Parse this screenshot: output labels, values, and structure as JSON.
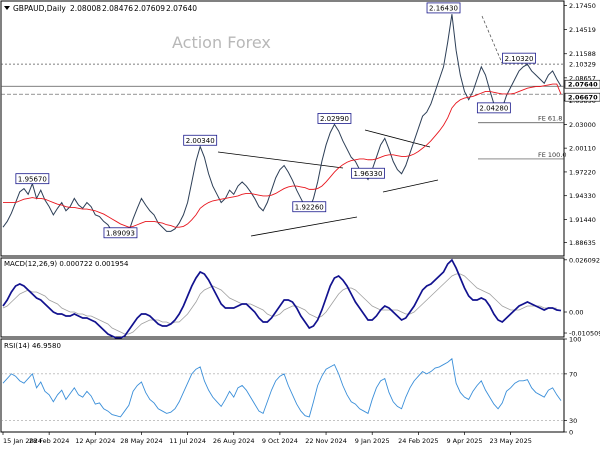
{
  "header": {
    "title": "GBPAUD,Daily",
    "ohlc": [
      "2.08008",
      "2.08476",
      "2.07609",
      "2.07640"
    ]
  },
  "watermark": "Action Forex",
  "colors": {
    "price": "#2d3f57",
    "ma": "#e8171f",
    "macd": "#12128f",
    "signal": "#a0a0a0",
    "rsi": "#3b8fd9",
    "grid": "#555555",
    "label_box": "#1a1a8c"
  },
  "chart_data": [
    {
      "type": "line",
      "panel": "price",
      "series": [
        {
          "values": [
            1.905,
            1.912,
            1.922,
            1.935,
            1.948,
            1.952,
            1.945,
            1.958,
            1.94,
            1.95,
            1.938,
            1.93,
            1.92,
            1.928,
            1.935,
            1.925,
            1.93,
            1.94,
            1.932,
            1.928,
            1.935,
            1.93,
            1.92,
            1.918,
            1.912,
            1.908,
            1.9,
            1.896,
            1.893,
            1.895,
            1.9,
            1.915,
            1.928,
            1.94,
            1.932,
            1.925,
            1.92,
            1.91,
            1.905,
            1.9,
            1.9,
            1.903,
            1.91,
            1.92,
            1.935,
            1.96,
            1.985,
            2.003,
            1.99,
            1.97,
            1.955,
            1.945,
            1.935,
            1.94,
            1.95,
            1.945,
            1.955,
            1.96,
            1.955,
            1.948,
            1.94,
            1.93,
            1.925,
            1.935,
            1.95,
            1.965,
            1.975,
            1.98,
            1.972,
            1.962,
            1.95,
            1.94,
            1.93,
            1.927,
            1.94,
            1.96,
            1.985,
            2.005,
            2.02,
            2.03,
            2.022,
            2.01,
            2.0,
            1.99,
            1.985,
            1.975,
            1.97,
            1.963,
            1.975,
            1.99,
            2.005,
            2.013,
            2.0,
            1.985,
            1.975,
            1.97,
            1.98,
            1.995,
            2.01,
            2.025,
            2.04,
            2.045,
            2.055,
            2.07,
            2.085,
            2.1,
            2.13,
            2.164,
            2.12,
            2.09,
            2.07,
            2.06,
            2.07,
            2.085,
            2.1,
            2.09,
            2.072,
            2.055,
            2.045,
            2.05,
            2.065,
            2.075,
            2.085,
            2.095,
            2.1,
            2.103,
            2.095,
            2.09,
            2.085,
            2.08,
            2.09,
            2.095,
            2.085,
            2.0764
          ]
        },
        {
          "values": [
            1.935,
            1.935,
            1.935,
            1.935,
            1.937,
            1.939,
            1.94,
            1.941,
            1.94,
            1.94,
            1.939,
            1.937,
            1.935,
            1.933,
            1.932,
            1.93,
            1.929,
            1.929,
            1.928,
            1.927,
            1.927,
            1.926,
            1.925,
            1.923,
            1.921,
            1.918,
            1.915,
            1.912,
            1.909,
            1.907,
            1.905,
            1.906,
            1.908,
            1.91,
            1.912,
            1.912,
            1.912,
            1.911,
            1.91,
            1.908,
            1.907,
            1.905,
            1.905,
            1.906,
            1.909,
            1.914,
            1.92,
            1.928,
            1.932,
            1.935,
            1.937,
            1.938,
            1.939,
            1.94,
            1.941,
            1.942,
            1.943,
            1.945,
            1.946,
            1.946,
            1.945,
            1.944,
            1.943,
            1.943,
            1.944,
            1.946,
            1.949,
            1.952,
            1.954,
            1.955,
            1.955,
            1.954,
            1.953,
            1.951,
            1.951,
            1.952,
            1.955,
            1.96,
            1.966,
            1.972,
            1.977,
            1.981,
            1.984,
            1.986,
            1.987,
            1.988,
            1.988,
            1.987,
            1.987,
            1.988,
            1.99,
            1.992,
            1.993,
            1.993,
            1.992,
            1.991,
            1.991,
            1.992,
            1.994,
            1.997,
            2.001,
            2.005,
            2.01,
            2.016,
            2.022,
            2.029,
            2.038,
            2.05,
            2.056,
            2.06,
            2.062,
            2.063,
            2.064,
            2.066,
            2.068,
            2.07,
            2.07,
            2.069,
            2.068,
            2.067,
            2.067,
            2.067,
            2.068,
            2.07,
            2.072,
            2.074,
            2.075,
            2.076,
            2.076,
            2.077,
            2.078,
            2.079,
            2.079,
            2.0667
          ]
        }
      ],
      "ylim": [
        1.87,
        2.18
      ],
      "y_ticks": [
        "2.17450",
        "2.14519",
        "2.11588",
        "2.08657",
        "2.05890",
        "2.03000",
        "2.00110",
        "1.97220",
        "1.94330",
        "1.91440",
        "1.88635"
      ],
      "y_tick_values": [
        2.1745,
        2.14519,
        2.11588,
        2.08657,
        2.0589,
        2.03,
        2.0011,
        1.9722,
        1.9433,
        1.9144,
        1.88635
      ],
      "levels": [
        {
          "label": "2.10329",
          "value": 2.10329,
          "style": "dotted"
        },
        {
          "label": "2.07640",
          "value": 2.0764,
          "style": "solid-flag"
        },
        {
          "label": "2.06670",
          "value": 2.0667,
          "style": "dashed-flag"
        }
      ],
      "fib_levels": [
        {
          "label": "FE 61.8",
          "value": 2.032
        },
        {
          "label": "FE 100.0",
          "value": 1.988
        }
      ],
      "annotations": [
        {
          "label": "1.95670",
          "index": 7,
          "value": 1.9567
        },
        {
          "label": "1.89093",
          "index": 28,
          "value": 1.89093
        },
        {
          "label": "2.00340",
          "index": 47,
          "value": 2.0034
        },
        {
          "label": "1.92260",
          "index": 73,
          "value": 1.9226
        },
        {
          "label": "2.02990",
          "index": 79,
          "value": 2.0299
        },
        {
          "label": "1.96330",
          "index": 87,
          "value": 1.9633
        },
        {
          "label": "2.16430",
          "index": 105,
          "value": 2.1643
        },
        {
          "label": "2.04280",
          "index": 117,
          "value": 2.0428
        },
        {
          "label": "2.10320",
          "index": 123,
          "value": 2.1032
        }
      ],
      "x_labels": [
        "15 Jan 2024",
        "28 Feb 2024",
        "12 Apr 2024",
        "28 May 2024",
        "11 Jul 2024",
        "26 Aug 2024",
        "9 Oct 2024",
        "22 Nov 2024",
        "9 Jan 2025",
        "24 Feb 2025",
        "9 Apr 2025",
        "23 May 2025"
      ],
      "x_label_indices": [
        0,
        11,
        22,
        33,
        44,
        55,
        66,
        77,
        88,
        99,
        110,
        121
      ]
    },
    {
      "type": "line",
      "panel": "macd",
      "title": "MACD(12,26,9) 0.000722 0.001954",
      "series": [
        {
          "values": [
            0.003,
            0.006,
            0.01,
            0.013,
            0.014,
            0.013,
            0.011,
            0.009,
            0.007,
            0.006,
            0.004,
            0.002,
            0.0,
            -0.001,
            -0.001,
            -0.002,
            -0.002,
            -0.001,
            -0.002,
            -0.003,
            -0.003,
            -0.004,
            -0.005,
            -0.007,
            -0.009,
            -0.011,
            -0.012,
            -0.013,
            -0.013,
            -0.012,
            -0.009,
            -0.006,
            -0.003,
            -0.001,
            -0.001,
            -0.002,
            -0.004,
            -0.006,
            -0.007,
            -0.007,
            -0.006,
            -0.004,
            -0.001,
            0.003,
            0.008,
            0.013,
            0.017,
            0.02,
            0.019,
            0.016,
            0.012,
            0.008,
            0.004,
            0.002,
            0.002,
            0.002,
            0.003,
            0.004,
            0.004,
            0.002,
            0.0,
            -0.003,
            -0.005,
            -0.005,
            -0.003,
            0.0,
            0.003,
            0.006,
            0.006,
            0.005,
            0.002,
            -0.002,
            -0.005,
            -0.008,
            -0.007,
            -0.004,
            0.001,
            0.007,
            0.013,
            0.017,
            0.018,
            0.016,
            0.013,
            0.009,
            0.005,
            0.002,
            -0.001,
            -0.004,
            -0.004,
            -0.002,
            0.001,
            0.003,
            0.002,
            0.0,
            -0.002,
            -0.004,
            -0.003,
            0.0,
            0.003,
            0.007,
            0.011,
            0.013,
            0.014,
            0.016,
            0.018,
            0.02,
            0.024,
            0.026,
            0.022,
            0.017,
            0.012,
            0.008,
            0.006,
            0.006,
            0.007,
            0.006,
            0.003,
            -0.001,
            -0.004,
            -0.005,
            -0.003,
            -0.001,
            0.001,
            0.003,
            0.004,
            0.005,
            0.004,
            0.003,
            0.002,
            0.001,
            0.002,
            0.002,
            0.001,
            0.000722
          ]
        },
        {
          "values": [
            0.002,
            0.003,
            0.005,
            0.007,
            0.009,
            0.01,
            0.011,
            0.01,
            0.01,
            0.009,
            0.008,
            0.006,
            0.005,
            0.004,
            0.002,
            0.001,
            0.0,
            0.0,
            -0.001,
            -0.001,
            -0.002,
            -0.002,
            -0.003,
            -0.004,
            -0.005,
            -0.006,
            -0.008,
            -0.009,
            -0.01,
            -0.011,
            -0.011,
            -0.01,
            -0.008,
            -0.006,
            -0.005,
            -0.004,
            -0.004,
            -0.004,
            -0.005,
            -0.005,
            -0.006,
            -0.005,
            -0.005,
            -0.003,
            -0.001,
            0.002,
            0.005,
            0.009,
            0.011,
            0.012,
            0.013,
            0.012,
            0.011,
            0.009,
            0.007,
            0.006,
            0.005,
            0.004,
            0.004,
            0.004,
            0.003,
            0.002,
            0.001,
            -0.001,
            -0.002,
            -0.002,
            -0.001,
            0.001,
            0.002,
            0.003,
            0.003,
            0.002,
            0.001,
            -0.001,
            -0.002,
            -0.003,
            -0.002,
            0.0,
            0.003,
            0.006,
            0.009,
            0.011,
            0.012,
            0.012,
            0.011,
            0.009,
            0.007,
            0.005,
            0.003,
            0.002,
            0.001,
            0.001,
            0.001,
            0.001,
            0.001,
            0.0,
            -0.001,
            -0.001,
            0.0,
            0.002,
            0.004,
            0.006,
            0.008,
            0.01,
            0.012,
            0.014,
            0.016,
            0.018,
            0.019,
            0.019,
            0.018,
            0.016,
            0.014,
            0.012,
            0.011,
            0.01,
            0.009,
            0.007,
            0.005,
            0.003,
            0.002,
            0.001,
            0.001,
            0.001,
            0.002,
            0.003,
            0.003,
            0.003,
            0.003,
            0.002,
            0.002,
            0.002,
            0.001954
          ]
        }
      ],
      "ylim": [
        -0.0125,
        0.027
      ],
      "y_ticks": [
        "0.026092",
        "0.00",
        "-0.010509"
      ],
      "y_tick_values": [
        0.026092,
        0.0,
        -0.010509
      ]
    },
    {
      "type": "line",
      "panel": "rsi",
      "title": "RSI(14) 46.9580",
      "series": [
        {
          "values": [
            62,
            66,
            70,
            68,
            64,
            62,
            66,
            70,
            58,
            63,
            55,
            52,
            46,
            52,
            56,
            48,
            53,
            58,
            52,
            50,
            55,
            51,
            44,
            45,
            40,
            38,
            35,
            34,
            33,
            38,
            43,
            55,
            60,
            63,
            54,
            48,
            45,
            40,
            38,
            36,
            37,
            40,
            46,
            54,
            62,
            70,
            74,
            76,
            64,
            56,
            50,
            46,
            42,
            48,
            55,
            50,
            58,
            60,
            56,
            50,
            44,
            38,
            36,
            46,
            56,
            64,
            68,
            70,
            60,
            52,
            44,
            38,
            34,
            33,
            46,
            60,
            68,
            74,
            76,
            78,
            70,
            60,
            52,
            46,
            44,
            40,
            38,
            36,
            48,
            58,
            64,
            66,
            54,
            46,
            42,
            40,
            50,
            58,
            64,
            68,
            72,
            70,
            72,
            75,
            76,
            78,
            80,
            83,
            62,
            54,
            50,
            48,
            55,
            60,
            64,
            56,
            50,
            44,
            40,
            45,
            55,
            58,
            62,
            64,
            64,
            65,
            58,
            54,
            52,
            50,
            56,
            58,
            52,
            46.958
          ]
        }
      ],
      "ylim": [
        20,
        100
      ],
      "y_ticks": [
        "100",
        "70",
        "30",
        "0"
      ],
      "y_tick_values": [
        100,
        70,
        30,
        0
      ]
    }
  ]
}
